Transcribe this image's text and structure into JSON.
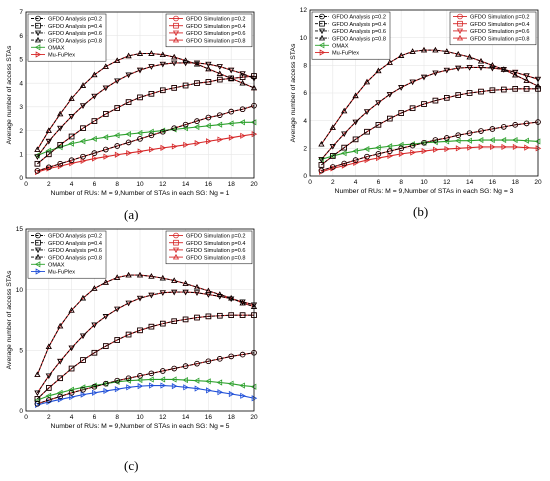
{
  "figure": {
    "captions": [
      "(a)",
      "(b)",
      "(c)"
    ]
  },
  "chart_data": [
    {
      "type": "line",
      "panel_label": "(a)",
      "xlabel": "Number of RUs: M = 9,Number of STAs in each SG: Ng = 1",
      "ylabel": "Average number of access STAs",
      "xlim": [
        0,
        20
      ],
      "ylim": [
        0,
        7
      ],
      "xticks": [
        0,
        2,
        4,
        6,
        8,
        10,
        12,
        14,
        16,
        18,
        20
      ],
      "yticks": [
        0,
        1,
        2,
        3,
        4,
        5,
        6,
        7
      ],
      "grid": true,
      "legend_left": [
        "GFDO Analysis p=0.2",
        "GFDO Analysis p=0.4",
        "GFDO Analysis p=0.6",
        "GFDO Analysis p=0.8",
        "OMAX",
        "Mu-FuPlex"
      ],
      "legend_right": [
        "GFDO Simulation p=0.2",
        "GFDO Simulation p=0.4",
        "GFDO Simulation p=0.6",
        "GFDO Simulation p=0.8"
      ],
      "x": [
        1,
        2,
        3,
        4,
        5,
        6,
        7,
        8,
        9,
        10,
        11,
        12,
        13,
        14,
        15,
        16,
        17,
        18,
        19,
        20
      ],
      "series": [
        {
          "name": "GFDO Analysis p=0.2",
          "color": "#000000",
          "marker": "circle",
          "values": [
            0.3,
            0.45,
            0.6,
            0.75,
            0.9,
            1.05,
            1.2,
            1.35,
            1.5,
            1.65,
            1.8,
            1.95,
            2.1,
            2.25,
            2.4,
            2.55,
            2.65,
            2.8,
            2.9,
            3.05
          ]
        },
        {
          "name": "GFDO Analysis p=0.4",
          "color": "#000000",
          "marker": "square",
          "values": [
            0.6,
            1.0,
            1.4,
            1.75,
            2.1,
            2.4,
            2.7,
            2.95,
            3.2,
            3.4,
            3.55,
            3.7,
            3.8,
            3.9,
            4.0,
            4.05,
            4.15,
            4.2,
            4.25,
            4.3
          ]
        },
        {
          "name": "GFDO Analysis p=0.6",
          "color": "#000000",
          "marker": "triangle-down",
          "values": [
            0.9,
            1.55,
            2.1,
            2.6,
            3.05,
            3.45,
            3.8,
            4.1,
            4.35,
            4.55,
            4.7,
            4.8,
            4.85,
            4.85,
            4.85,
            4.8,
            4.7,
            4.55,
            4.4,
            4.2
          ]
        },
        {
          "name": "GFDO Analysis p=0.8",
          "color": "#000000",
          "marker": "triangle-up",
          "values": [
            1.2,
            2.0,
            2.7,
            3.35,
            3.9,
            4.35,
            4.7,
            4.95,
            5.15,
            5.25,
            5.25,
            5.2,
            5.1,
            4.95,
            4.8,
            4.6,
            4.4,
            4.2,
            4.0,
            3.8
          ]
        },
        {
          "name": "GFDO Simulation p=0.2",
          "color": "#d62728",
          "marker": "circle",
          "values": [
            0.3,
            0.45,
            0.6,
            0.75,
            0.9,
            1.05,
            1.2,
            1.35,
            1.5,
            1.65,
            1.8,
            1.95,
            2.1,
            2.25,
            2.4,
            2.55,
            2.65,
            2.8,
            2.9,
            3.05
          ]
        },
        {
          "name": "GFDO Simulation p=0.4",
          "color": "#d62728",
          "marker": "square",
          "values": [
            0.6,
            1.0,
            1.4,
            1.75,
            2.1,
            2.4,
            2.7,
            2.95,
            3.2,
            3.4,
            3.55,
            3.7,
            3.8,
            3.9,
            4.0,
            4.05,
            4.15,
            4.2,
            4.25,
            4.3
          ]
        },
        {
          "name": "GFDO Simulation p=0.6",
          "color": "#d62728",
          "marker": "triangle-down",
          "values": [
            0.9,
            1.55,
            2.1,
            2.6,
            3.05,
            3.45,
            3.8,
            4.1,
            4.35,
            4.55,
            4.7,
            4.8,
            4.85,
            4.85,
            4.85,
            4.8,
            4.7,
            4.55,
            4.4,
            4.2
          ]
        },
        {
          "name": "GFDO Simulation p=0.8",
          "color": "#d62728",
          "marker": "triangle-up",
          "values": [
            1.2,
            2.0,
            2.7,
            3.35,
            3.9,
            4.35,
            4.7,
            4.95,
            5.15,
            5.25,
            5.25,
            5.2,
            5.1,
            4.95,
            4.8,
            4.6,
            4.4,
            4.2,
            4.0,
            3.8
          ]
        },
        {
          "name": "OMAX",
          "color": "#2ca02c",
          "marker": "triangle-left",
          "values": [
            0.95,
            1.15,
            1.3,
            1.45,
            1.55,
            1.65,
            1.72,
            1.8,
            1.85,
            1.9,
            1.95,
            2.0,
            2.05,
            2.1,
            2.15,
            2.2,
            2.25,
            2.3,
            2.35,
            2.35
          ]
        },
        {
          "name": "Mu-FuPlex",
          "color": "#d62728",
          "marker": "triangle-right",
          "values": [
            0.25,
            0.4,
            0.5,
            0.62,
            0.72,
            0.82,
            0.9,
            0.98,
            1.05,
            1.12,
            1.2,
            1.27,
            1.33,
            1.4,
            1.47,
            1.55,
            1.62,
            1.7,
            1.78,
            1.85
          ]
        }
      ]
    },
    {
      "type": "line",
      "panel_label": "(b)",
      "xlabel": "Number of RUs: M = 9,Number of STAs in each SG: Ng = 3",
      "ylabel": "Average number of access STAs",
      "xlim": [
        0,
        20
      ],
      "ylim": [
        0,
        12
      ],
      "xticks": [
        0,
        2,
        4,
        6,
        8,
        10,
        12,
        14,
        16,
        18,
        20
      ],
      "yticks": [
        0,
        2,
        4,
        6,
        8,
        10,
        12
      ],
      "grid": true,
      "legend_left": [
        "GFDO Analysis p=0.2",
        "GFDO Analysis p=0.4",
        "GFDO Analysis p=0.6",
        "GFDO Analysis p=0.8",
        "OMAX",
        "Mu-FuPlex"
      ],
      "legend_right": [
        "GFDO Simulation p=0.2",
        "GFDO Simulation p=0.4",
        "GFDO Simulation p=0.6",
        "GFDO Simulation p=0.8"
      ],
      "x": [
        1,
        2,
        3,
        4,
        5,
        6,
        7,
        8,
        9,
        10,
        11,
        12,
        13,
        14,
        15,
        16,
        17,
        18,
        19,
        20
      ],
      "series": [
        {
          "name": "GFDO Analysis p=0.2",
          "color": "#000000",
          "marker": "circle",
          "values": [
            0.4,
            0.65,
            0.9,
            1.15,
            1.4,
            1.6,
            1.8,
            2.0,
            2.2,
            2.4,
            2.6,
            2.75,
            2.95,
            3.1,
            3.25,
            3.4,
            3.55,
            3.7,
            3.8,
            3.9
          ]
        },
        {
          "name": "GFDO Analysis p=0.4",
          "color": "#000000",
          "marker": "square",
          "values": [
            0.8,
            1.45,
            2.05,
            2.65,
            3.2,
            3.7,
            4.15,
            4.55,
            4.9,
            5.2,
            5.45,
            5.65,
            5.85,
            6.0,
            6.1,
            6.2,
            6.25,
            6.3,
            6.3,
            6.3
          ]
        },
        {
          "name": "GFDO Analysis p=0.6",
          "color": "#000000",
          "marker": "triangle-down",
          "values": [
            1.2,
            2.15,
            3.05,
            3.9,
            4.65,
            5.3,
            5.9,
            6.4,
            6.8,
            7.15,
            7.45,
            7.65,
            7.8,
            7.85,
            7.85,
            7.8,
            7.7,
            7.5,
            7.25,
            7.0
          ]
        },
        {
          "name": "GFDO Analysis p=0.8",
          "color": "#000000",
          "marker": "triangle-up",
          "values": [
            2.3,
            3.5,
            4.7,
            5.8,
            6.8,
            7.6,
            8.2,
            8.7,
            9.0,
            9.1,
            9.1,
            9.0,
            8.8,
            8.6,
            8.3,
            8.0,
            7.7,
            7.3,
            6.9,
            6.5
          ]
        },
        {
          "name": "GFDO Simulation p=0.2",
          "color": "#d62728",
          "marker": "circle",
          "values": [
            0.4,
            0.65,
            0.9,
            1.15,
            1.4,
            1.6,
            1.8,
            2.0,
            2.2,
            2.4,
            2.6,
            2.75,
            2.95,
            3.1,
            3.25,
            3.4,
            3.55,
            3.7,
            3.8,
            3.9
          ]
        },
        {
          "name": "GFDO Simulation p=0.4",
          "color": "#d62728",
          "marker": "square",
          "values": [
            0.8,
            1.45,
            2.05,
            2.65,
            3.2,
            3.7,
            4.15,
            4.55,
            4.9,
            5.2,
            5.45,
            5.65,
            5.85,
            6.0,
            6.1,
            6.2,
            6.25,
            6.3,
            6.3,
            6.3
          ]
        },
        {
          "name": "GFDO Simulation p=0.6",
          "color": "#d62728",
          "marker": "triangle-down",
          "values": [
            1.2,
            2.15,
            3.05,
            3.9,
            4.65,
            5.3,
            5.9,
            6.4,
            6.8,
            7.15,
            7.45,
            7.65,
            7.8,
            7.85,
            7.85,
            7.8,
            7.7,
            7.5,
            7.25,
            7.0
          ]
        },
        {
          "name": "GFDO Simulation p=0.8",
          "color": "#d62728",
          "marker": "triangle-up",
          "values": [
            2.3,
            3.5,
            4.7,
            5.8,
            6.8,
            7.6,
            8.2,
            8.7,
            9.0,
            9.1,
            9.1,
            9.0,
            8.8,
            8.6,
            8.3,
            8.0,
            7.7,
            7.3,
            6.9,
            6.5
          ]
        },
        {
          "name": "OMAX",
          "color": "#2ca02c",
          "marker": "triangle-left",
          "values": [
            1.2,
            1.45,
            1.65,
            1.8,
            1.95,
            2.05,
            2.15,
            2.25,
            2.3,
            2.4,
            2.45,
            2.5,
            2.55,
            2.55,
            2.6,
            2.6,
            2.6,
            2.6,
            2.55,
            2.5
          ]
        },
        {
          "name": "Mu-FuPlex",
          "color": "#d62728",
          "marker": "triangle-right",
          "values": [
            0.3,
            0.55,
            0.75,
            0.95,
            1.15,
            1.3,
            1.45,
            1.6,
            1.7,
            1.8,
            1.9,
            1.95,
            2.0,
            2.05,
            2.1,
            2.1,
            2.1,
            2.1,
            2.05,
            2.0
          ]
        }
      ]
    },
    {
      "type": "line",
      "panel_label": "(c)",
      "xlabel": "Number of RUs: M = 9,Number of STAs in each SG: Ng = 5",
      "ylabel": "Average number of access STAs",
      "xlim": [
        0,
        20
      ],
      "ylim": [
        0,
        15
      ],
      "xticks": [
        0,
        2,
        4,
        6,
        8,
        10,
        12,
        14,
        16,
        18,
        20
      ],
      "yticks": [
        0,
        5,
        10,
        15
      ],
      "grid": true,
      "legend_left": [
        "GFDO Analysis p=0.2",
        "GFDO Analysis p=0.4",
        "GFDO Analysis p=0.6",
        "GFDO Analysis p=0.8",
        "OMAX",
        "Mu-FuPlex"
      ],
      "legend_right": [
        "GFDO Simulation p=0.2",
        "GFDO Simulation p=0.4",
        "GFDO Simulation p=0.6",
        "GFDO Simulation p=0.8"
      ],
      "x": [
        1,
        2,
        3,
        4,
        5,
        6,
        7,
        8,
        9,
        10,
        11,
        12,
        13,
        14,
        15,
        16,
        17,
        18,
        19,
        20
      ],
      "series": [
        {
          "name": "GFDO Analysis p=0.2",
          "color": "#000000",
          "marker": "circle",
          "values": [
            0.6,
            0.9,
            1.2,
            1.5,
            1.75,
            2.0,
            2.25,
            2.5,
            2.7,
            2.9,
            3.1,
            3.3,
            3.5,
            3.7,
            3.9,
            4.1,
            4.3,
            4.5,
            4.65,
            4.8
          ]
        },
        {
          "name": "GFDO Analysis p=0.4",
          "color": "#000000",
          "marker": "square",
          "values": [
            1.0,
            1.9,
            2.7,
            3.5,
            4.2,
            4.8,
            5.35,
            5.85,
            6.3,
            6.65,
            6.95,
            7.2,
            7.4,
            7.55,
            7.7,
            7.8,
            7.85,
            7.9,
            7.9,
            7.9
          ]
        },
        {
          "name": "GFDO Analysis p=0.6",
          "color": "#000000",
          "marker": "triangle-down",
          "values": [
            1.5,
            2.9,
            4.1,
            5.2,
            6.2,
            7.1,
            7.8,
            8.4,
            8.9,
            9.3,
            9.55,
            9.75,
            9.8,
            9.8,
            9.75,
            9.6,
            9.45,
            9.25,
            9.0,
            8.75
          ]
        },
        {
          "name": "GFDO Analysis p=0.8",
          "color": "#000000",
          "marker": "triangle-up",
          "values": [
            3.0,
            5.3,
            7.0,
            8.3,
            9.3,
            10.1,
            10.6,
            11.0,
            11.2,
            11.2,
            11.1,
            10.95,
            10.75,
            10.5,
            10.2,
            9.9,
            9.6,
            9.3,
            8.9,
            8.6
          ]
        },
        {
          "name": "GFDO Simulation p=0.2",
          "color": "#d62728",
          "marker": "circle",
          "values": [
            0.6,
            0.9,
            1.2,
            1.5,
            1.75,
            2.0,
            2.25,
            2.5,
            2.7,
            2.9,
            3.1,
            3.3,
            3.5,
            3.7,
            3.9,
            4.1,
            4.3,
            4.5,
            4.65,
            4.8
          ]
        },
        {
          "name": "GFDO Simulation p=0.4",
          "color": "#d62728",
          "marker": "square",
          "values": [
            1.0,
            1.9,
            2.7,
            3.5,
            4.2,
            4.8,
            5.35,
            5.85,
            6.3,
            6.65,
            6.95,
            7.2,
            7.4,
            7.55,
            7.7,
            7.8,
            7.85,
            7.9,
            7.9,
            7.9
          ]
        },
        {
          "name": "GFDO Simulation p=0.6",
          "color": "#d62728",
          "marker": "triangle-down",
          "values": [
            1.5,
            2.9,
            4.1,
            5.2,
            6.2,
            7.1,
            7.8,
            8.4,
            8.9,
            9.3,
            9.55,
            9.75,
            9.8,
            9.8,
            9.75,
            9.6,
            9.45,
            9.25,
            9.0,
            8.75
          ]
        },
        {
          "name": "GFDO Simulation p=0.8",
          "color": "#d62728",
          "marker": "triangle-up",
          "values": [
            3.0,
            5.3,
            7.0,
            8.3,
            9.3,
            10.1,
            10.6,
            11.0,
            11.2,
            11.2,
            11.1,
            10.95,
            10.75,
            10.5,
            10.2,
            9.9,
            9.6,
            9.3,
            8.9,
            8.6
          ]
        },
        {
          "name": "OMAX",
          "color": "#2ca02c",
          "marker": "triangle-left",
          "values": [
            0.9,
            1.25,
            1.5,
            1.75,
            1.95,
            2.1,
            2.25,
            2.4,
            2.5,
            2.55,
            2.6,
            2.6,
            2.6,
            2.55,
            2.5,
            2.45,
            2.35,
            2.25,
            2.1,
            2.0
          ]
        },
        {
          "name": "Mu-FuPlex",
          "color": "#1f4fd8",
          "marker": "triangle-right",
          "values": [
            0.5,
            0.75,
            0.95,
            1.15,
            1.35,
            1.5,
            1.65,
            1.8,
            1.95,
            2.05,
            2.1,
            2.1,
            2.05,
            1.95,
            1.85,
            1.7,
            1.55,
            1.4,
            1.25,
            1.05
          ]
        }
      ]
    }
  ]
}
